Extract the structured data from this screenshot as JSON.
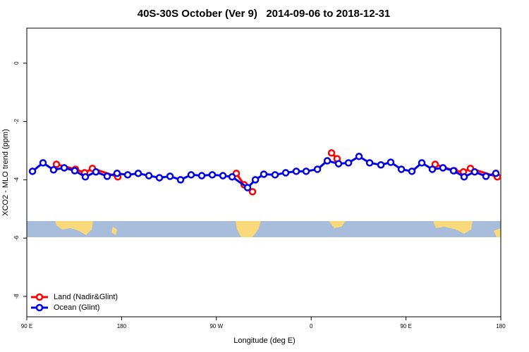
{
  "chart_data": {
    "type": "line",
    "title": "40S-30S October (Ver 9)   2014-09-06 to 2018-12-31",
    "xlabel": "Longitude (deg E)",
    "ylabel": "XCO2 - MLO trend (ppm)",
    "xlim": [
      90,
      540
    ],
    "xticks": [
      {
        "value": 90,
        "label": "90 E"
      },
      {
        "value": 180,
        "label": "180"
      },
      {
        "value": 270,
        "label": "90 W"
      },
      {
        "value": 360,
        "label": "0"
      },
      {
        "value": 450,
        "label": "90 E"
      },
      {
        "value": 540,
        "label": "180"
      }
    ],
    "ylim": [
      -8.7,
      1.2
    ],
    "yticks": [
      0,
      -2,
      -4,
      -6,
      -8
    ],
    "legend": "bottomleft",
    "series": [
      {
        "name": "Land (Nadir&Glint)",
        "color": "#ff0000",
        "x": [
          118.1,
          136.2,
          144.9,
          152.3,
          176.4,
          null,
          288.9,
          296.3,
          304.3,
          null,
          379.3,
          384.6,
          null,
          477.7,
          495.8,
          504.5,
          511.2,
          536.7
        ],
        "values": [
          -3.47,
          -3.64,
          -3.76,
          -3.61,
          -3.9,
          null,
          -3.78,
          -4.17,
          -4.41,
          null,
          -3.08,
          -3.28,
          null,
          -3.47,
          -3.69,
          -3.73,
          -3.61,
          -3.9
        ]
      },
      {
        "name": "Ocean (Glint)",
        "color": "#0000e6",
        "x": [
          95.4,
          105.4,
          115.4,
          125.5,
          135.5,
          145.6,
          155.6,
          166.3,
          175.7,
          185.8,
          195.8,
          205.9,
          215.9,
          226,
          236,
          246,
          256.1,
          266.1,
          276.2,
          284.9,
          299.6,
          307,
          315,
          325.7,
          335.8,
          345.8,
          355.2,
          365.9,
          375.3,
          386,
          395.4,
          405.4,
          415.5,
          426.2,
          435.5,
          445.6,
          455.6,
          465,
          475,
          485.1,
          495.1,
          505.2,
          515.2,
          525.9,
          535.3
        ],
        "values": [
          -3.71,
          -3.42,
          -3.66,
          -3.59,
          -3.69,
          -3.9,
          -3.73,
          -3.88,
          -3.78,
          -3.83,
          -3.78,
          -3.86,
          -3.93,
          -3.88,
          -4.0,
          -3.83,
          -3.86,
          -3.83,
          -3.86,
          -3.9,
          -4.27,
          -4.0,
          -3.81,
          -3.83,
          -3.76,
          -3.71,
          -3.71,
          -3.64,
          -3.35,
          -3.45,
          -3.42,
          -3.2,
          -3.42,
          -3.49,
          -3.4,
          -3.64,
          -3.71,
          -3.42,
          -3.64,
          -3.59,
          -3.69,
          -3.9,
          -3.73,
          -3.88,
          -3.78
        ]
      }
    ]
  }
}
